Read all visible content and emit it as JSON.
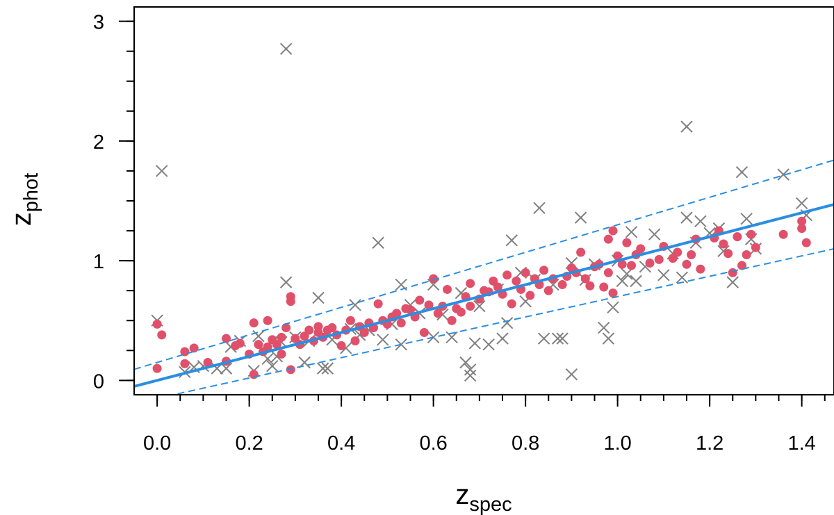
{
  "chart_data": {
    "type": "scatter",
    "title": "",
    "xlabel": {
      "main": "z",
      "sub": "spec"
    },
    "ylabel": {
      "main": "z",
      "sub": "phot"
    },
    "xlim": [
      -0.05,
      1.47
    ],
    "ylim": [
      -0.12,
      3.12
    ],
    "x_ticks": [
      {
        "value": 0.0,
        "label": "0.0"
      },
      {
        "value": 0.2,
        "label": "0.2"
      },
      {
        "value": 0.4,
        "label": "0.4"
      },
      {
        "value": 0.6,
        "label": "0.6"
      },
      {
        "value": 0.8,
        "label": "0.8"
      },
      {
        "value": 1.0,
        "label": "1.0"
      },
      {
        "value": 1.2,
        "label": "1.2"
      },
      {
        "value": 1.4,
        "label": "1.4"
      }
    ],
    "x_minor_step": 0.05,
    "y_ticks": [
      {
        "value": 0,
        "label": "0"
      },
      {
        "value": 1,
        "label": "1"
      },
      {
        "value": 2,
        "label": "2"
      },
      {
        "value": 3,
        "label": "3"
      }
    ],
    "y_minor_step": 0.25,
    "grid": false,
    "lines": [
      {
        "name": "one-to-one",
        "slope": 1.0,
        "intercept": 0.0,
        "style": "solid",
        "color": "#2b8ee0"
      },
      {
        "name": "upper-bound",
        "slope": 1.15,
        "intercept": 0.15,
        "style": "dashed",
        "color": "#2b8ee0"
      },
      {
        "name": "lower-bound",
        "slope": 0.85,
        "intercept": -0.15,
        "style": "dashed",
        "color": "#2b8ee0"
      }
    ],
    "series": [
      {
        "name": "rejected",
        "marker": "x",
        "color": "#808080",
        "points": [
          [
            0.0,
            0.5
          ],
          [
            0.01,
            1.75
          ],
          [
            0.06,
            0.07
          ],
          [
            0.08,
            0.11
          ],
          [
            0.1,
            0.12
          ],
          [
            0.13,
            0.1
          ],
          [
            0.15,
            0.1
          ],
          [
            0.16,
            0.28
          ],
          [
            0.18,
            0.33
          ],
          [
            0.21,
            0.08
          ],
          [
            0.22,
            0.37
          ],
          [
            0.24,
            0.18
          ],
          [
            0.25,
            0.12
          ],
          [
            0.26,
            0.2
          ],
          [
            0.27,
            0.32
          ],
          [
            0.28,
            2.77
          ],
          [
            0.28,
            0.82
          ],
          [
            0.3,
            0.36
          ],
          [
            0.32,
            0.15
          ],
          [
            0.33,
            0.33
          ],
          [
            0.35,
            0.69
          ],
          [
            0.36,
            0.1
          ],
          [
            0.37,
            0.1
          ],
          [
            0.38,
            0.34
          ],
          [
            0.41,
            0.27
          ],
          [
            0.42,
            0.43
          ],
          [
            0.43,
            0.63
          ],
          [
            0.44,
            0.38
          ],
          [
            0.46,
            0.42
          ],
          [
            0.48,
            1.15
          ],
          [
            0.49,
            0.34
          ],
          [
            0.51,
            0.47
          ],
          [
            0.53,
            0.8
          ],
          [
            0.53,
            0.3
          ],
          [
            0.55,
            0.63
          ],
          [
            0.57,
            0.56
          ],
          [
            0.6,
            0.36
          ],
          [
            0.6,
            0.8
          ],
          [
            0.62,
            0.55
          ],
          [
            0.64,
            0.36
          ],
          [
            0.66,
            0.73
          ],
          [
            0.67,
            0.15
          ],
          [
            0.68,
            0.09
          ],
          [
            0.68,
            0.04
          ],
          [
            0.69,
            0.31
          ],
          [
            0.7,
            0.62
          ],
          [
            0.72,
            0.3
          ],
          [
            0.74,
            0.76
          ],
          [
            0.75,
            0.35
          ],
          [
            0.76,
            0.48
          ],
          [
            0.77,
            1.17
          ],
          [
            0.79,
            0.9
          ],
          [
            0.8,
            0.66
          ],
          [
            0.82,
            0.84
          ],
          [
            0.83,
            1.44
          ],
          [
            0.84,
            0.35
          ],
          [
            0.86,
            0.8
          ],
          [
            0.87,
            0.35
          ],
          [
            0.88,
            0.35
          ],
          [
            0.9,
            0.05
          ],
          [
            0.9,
            0.98
          ],
          [
            0.92,
            1.36
          ],
          [
            0.93,
            0.84
          ],
          [
            0.95,
            0.97
          ],
          [
            0.97,
            0.44
          ],
          [
            0.98,
            0.35
          ],
          [
            0.99,
            0.61
          ],
          [
            1.0,
            1.0
          ],
          [
            1.01,
            0.83
          ],
          [
            1.02,
            0.89
          ],
          [
            1.03,
            1.24
          ],
          [
            1.04,
            0.83
          ],
          [
            1.06,
            0.95
          ],
          [
            1.08,
            1.22
          ],
          [
            1.1,
            0.88
          ],
          [
            1.12,
            1.06
          ],
          [
            1.14,
            0.86
          ],
          [
            1.15,
            2.12
          ],
          [
            1.15,
            1.36
          ],
          [
            1.17,
            1.15
          ],
          [
            1.18,
            1.33
          ],
          [
            1.2,
            1.23
          ],
          [
            1.22,
            1.27
          ],
          [
            1.23,
            1.08
          ],
          [
            1.25,
            0.82
          ],
          [
            1.27,
            1.74
          ],
          [
            1.28,
            1.35
          ],
          [
            1.29,
            1.18
          ],
          [
            1.3,
            1.1
          ],
          [
            1.36,
            1.72
          ],
          [
            1.4,
            1.48
          ],
          [
            1.41,
            1.38
          ]
        ]
      },
      {
        "name": "accepted",
        "marker": "circle",
        "color": "#e0506a",
        "points": [
          [
            0.0,
            0.47
          ],
          [
            0.0,
            0.1
          ],
          [
            0.01,
            0.38
          ],
          [
            0.06,
            0.24
          ],
          [
            0.06,
            0.14
          ],
          [
            0.08,
            0.27
          ],
          [
            0.11,
            0.15
          ],
          [
            0.15,
            0.16
          ],
          [
            0.15,
            0.35
          ],
          [
            0.17,
            0.29
          ],
          [
            0.18,
            0.31
          ],
          [
            0.2,
            0.22
          ],
          [
            0.21,
            0.05
          ],
          [
            0.21,
            0.48
          ],
          [
            0.22,
            0.3
          ],
          [
            0.23,
            0.24
          ],
          [
            0.24,
            0.28
          ],
          [
            0.24,
            0.5
          ],
          [
            0.25,
            0.34
          ],
          [
            0.26,
            0.3
          ],
          [
            0.27,
            0.36
          ],
          [
            0.27,
            0.22
          ],
          [
            0.28,
            0.44
          ],
          [
            0.29,
            0.7
          ],
          [
            0.29,
            0.66
          ],
          [
            0.29,
            0.09
          ],
          [
            0.3,
            0.35
          ],
          [
            0.31,
            0.3
          ],
          [
            0.32,
            0.37
          ],
          [
            0.33,
            0.42
          ],
          [
            0.34,
            0.33
          ],
          [
            0.35,
            0.4
          ],
          [
            0.35,
            0.45
          ],
          [
            0.36,
            0.36
          ],
          [
            0.37,
            0.42
          ],
          [
            0.38,
            0.44
          ],
          [
            0.39,
            0.38
          ],
          [
            0.4,
            0.29
          ],
          [
            0.41,
            0.42
          ],
          [
            0.42,
            0.5
          ],
          [
            0.43,
            0.33
          ],
          [
            0.44,
            0.45
          ],
          [
            0.45,
            0.4
          ],
          [
            0.46,
            0.48
          ],
          [
            0.47,
            0.44
          ],
          [
            0.48,
            0.64
          ],
          [
            0.49,
            0.5
          ],
          [
            0.5,
            0.47
          ],
          [
            0.51,
            0.53
          ],
          [
            0.52,
            0.56
          ],
          [
            0.53,
            0.48
          ],
          [
            0.54,
            0.6
          ],
          [
            0.55,
            0.59
          ],
          [
            0.56,
            0.53
          ],
          [
            0.57,
            0.67
          ],
          [
            0.58,
            0.4
          ],
          [
            0.59,
            0.63
          ],
          [
            0.6,
            0.85
          ],
          [
            0.61,
            0.56
          ],
          [
            0.62,
            0.62
          ],
          [
            0.63,
            0.76
          ],
          [
            0.64,
            0.5
          ],
          [
            0.65,
            0.6
          ],
          [
            0.66,
            0.57
          ],
          [
            0.67,
            0.7
          ],
          [
            0.68,
            0.81
          ],
          [
            0.68,
            0.62
          ],
          [
            0.7,
            0.68
          ],
          [
            0.71,
            0.75
          ],
          [
            0.72,
            0.74
          ],
          [
            0.73,
            0.83
          ],
          [
            0.74,
            0.78
          ],
          [
            0.75,
            0.72
          ],
          [
            0.76,
            0.88
          ],
          [
            0.77,
            0.64
          ],
          [
            0.78,
            0.83
          ],
          [
            0.79,
            0.76
          ],
          [
            0.8,
            0.9
          ],
          [
            0.81,
            0.71
          ],
          [
            0.82,
            0.85
          ],
          [
            0.83,
            0.8
          ],
          [
            0.84,
            0.92
          ],
          [
            0.85,
            0.75
          ],
          [
            0.86,
            0.85
          ],
          [
            0.88,
            0.8
          ],
          [
            0.89,
            0.87
          ],
          [
            0.9,
            0.94
          ],
          [
            0.91,
            0.9
          ],
          [
            0.92,
            1.07
          ],
          [
            0.93,
            0.85
          ],
          [
            0.94,
            0.79
          ],
          [
            0.95,
            0.95
          ],
          [
            0.96,
            0.97
          ],
          [
            0.97,
            0.78
          ],
          [
            0.98,
            0.9
          ],
          [
            0.98,
            1.18
          ],
          [
            0.99,
            1.25
          ],
          [
            0.99,
            0.73
          ],
          [
            1.0,
            1.04
          ],
          [
            1.01,
            0.97
          ],
          [
            1.02,
            1.15
          ],
          [
            1.03,
            0.96
          ],
          [
            1.04,
            1.05
          ],
          [
            1.05,
            1.1
          ],
          [
            1.07,
            0.98
          ],
          [
            1.09,
            1.01
          ],
          [
            1.1,
            1.12
          ],
          [
            1.12,
            1.02
          ],
          [
            1.13,
            1.07
          ],
          [
            1.15,
            0.97
          ],
          [
            1.16,
            1.05
          ],
          [
            1.17,
            1.18
          ],
          [
            1.18,
            0.93
          ],
          [
            1.21,
            1.19
          ],
          [
            1.22,
            1.25
          ],
          [
            1.23,
            1.14
          ],
          [
            1.24,
            1.06
          ],
          [
            1.25,
            0.9
          ],
          [
            1.26,
            1.2
          ],
          [
            1.27,
            0.96
          ],
          [
            1.28,
            1.05
          ],
          [
            1.29,
            1.22
          ],
          [
            1.3,
            1.11
          ],
          [
            1.36,
            1.22
          ],
          [
            1.4,
            1.27
          ],
          [
            1.4,
            1.33
          ],
          [
            1.41,
            1.15
          ]
        ]
      }
    ]
  }
}
